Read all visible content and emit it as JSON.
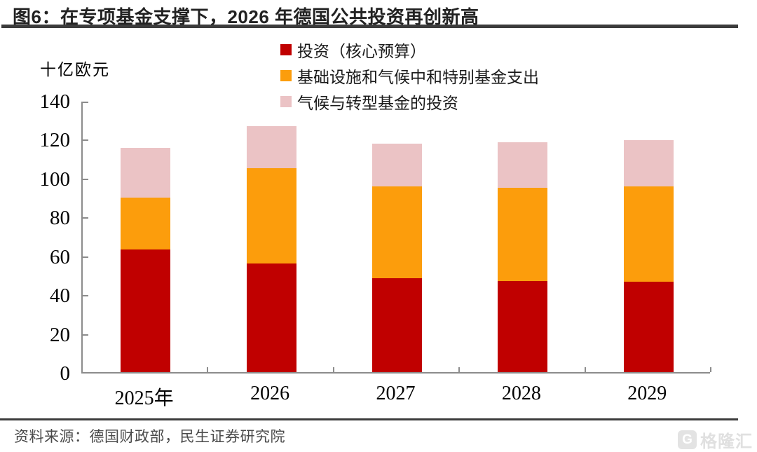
{
  "window": {
    "title": "图6：在专项基金支撑下，2026 年德国公共投资再创新高"
  },
  "footer": {
    "source": "资料来源：德国财政部，民生证券研究院",
    "watermark_text": "格隆汇",
    "watermark_initial": "G"
  },
  "colors": {
    "series_red": "#C00000",
    "series_orange": "#FC9D0C",
    "series_pink": "#EBC3C5",
    "axis": "#8C8C8C",
    "rule": "#3C3C3C",
    "source_text": "#4A4A4A",
    "watermark": "#E0E0E0"
  },
  "chart_data": {
    "type": "bar",
    "stacked": true,
    "title": "图6：在专项基金支撑下，2026 年德国公共投资再创新高",
    "unit_label": "十亿欧元",
    "categories": [
      "2025年",
      "2026",
      "2027",
      "2028",
      "2029"
    ],
    "series": [
      {
        "name": "投资（核心预算）",
        "color": "#C00000",
        "values": [
          63,
          56,
          48.5,
          47,
          46.5
        ]
      },
      {
        "name": "基础设施和气候中和特别基金支出",
        "color": "#FC9D0C",
        "values": [
          27,
          49,
          47,
          48,
          49
        ]
      },
      {
        "name": "气候与转型基金的投资",
        "color": "#EBC3C5",
        "values": [
          25.5,
          21.5,
          22,
          23.5,
          24
        ]
      }
    ],
    "totals": [
      115.5,
      126.5,
      117.5,
      118.5,
      119.5
    ],
    "ylim": [
      0,
      140
    ],
    "yticks": [
      0,
      20,
      40,
      60,
      80,
      100,
      120,
      140
    ],
    "grid": false,
    "legend_position": "top-center",
    "source": "资料来源：德国财政部，民生证券研究院"
  }
}
